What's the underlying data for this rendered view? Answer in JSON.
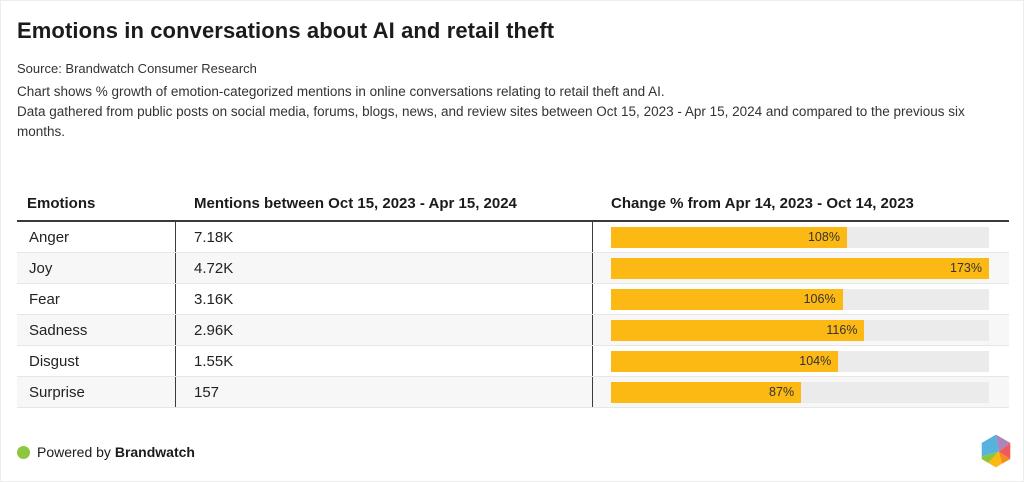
{
  "header": {
    "title": "Emotions in conversations about AI and retail theft",
    "source": "Source: Brandwatch Consumer Research",
    "description_line1": "Chart shows % growth of emotion-categorized mentions in online conversations relating to retail theft and AI.",
    "description_line2": "Data gathered from public posts on social media, forums, blogs, news, and review sites between Oct 15, 2023 - Apr 15, 2024 and compared to the previous six months."
  },
  "table": {
    "columns": [
      "Emotions",
      "Mentions between Oct 15, 2023 - Apr 15, 2024",
      "Change % from Apr 14, 2023 - Oct 14, 2023"
    ],
    "rows": [
      {
        "emotion": "Anger",
        "mentions": "7.18K",
        "change_pct": 108,
        "change_label": "108%"
      },
      {
        "emotion": "Joy",
        "mentions": "4.72K",
        "change_pct": 173,
        "change_label": "173%"
      },
      {
        "emotion": "Fear",
        "mentions": "3.16K",
        "change_pct": 106,
        "change_label": "106%"
      },
      {
        "emotion": "Sadness",
        "mentions": "2.96K",
        "change_pct": 116,
        "change_label": "116%"
      },
      {
        "emotion": "Disgust",
        "mentions": "1.55K",
        "change_pct": 104,
        "change_label": "104%"
      },
      {
        "emotion": "Surprise",
        "mentions": "157",
        "change_pct": 87,
        "change_label": "87%"
      }
    ]
  },
  "chart_data": {
    "type": "bar",
    "orientation": "horizontal",
    "title": "Emotions in conversations about AI and retail theft",
    "categories": [
      "Anger",
      "Joy",
      "Fear",
      "Sadness",
      "Disgust",
      "Surprise"
    ],
    "series": [
      {
        "name": "Mentions between Oct 15, 2023 - Apr 15, 2024",
        "values": [
          "7.18K",
          "4.72K",
          "3.16K",
          "2.96K",
          "1.55K",
          "157"
        ]
      },
      {
        "name": "Change % from Apr 14, 2023 - Oct 14, 2023",
        "values": [
          108,
          173,
          106,
          116,
          104,
          87
        ]
      }
    ],
    "value_labels": [
      "108%",
      "173%",
      "106%",
      "116%",
      "104%",
      "87%"
    ],
    "xmax": 173,
    "grid": false,
    "legend": false
  },
  "footer": {
    "powered_by": "Powered by",
    "brand": "Brandwatch"
  },
  "colors": {
    "bar": "#fcb813",
    "bar_track": "#ebebeb",
    "accent_green": "#8dc63f",
    "header_border": "#3a3a3a",
    "column_divider": "#3c3c3c"
  }
}
